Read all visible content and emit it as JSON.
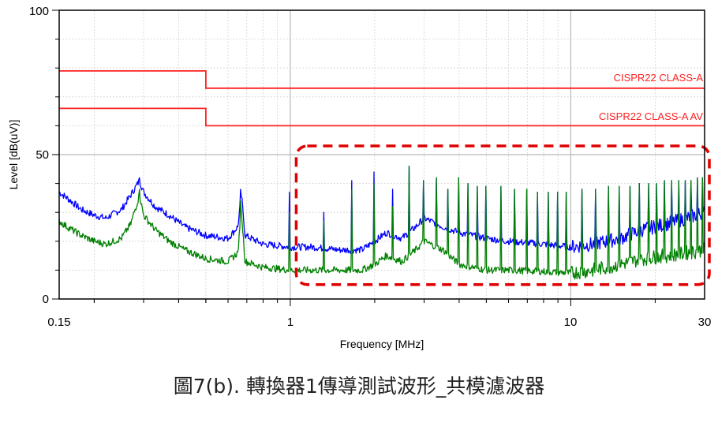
{
  "caption": "圖7(b). 轉換器1傳導測試波形_共模濾波器",
  "chart_data": {
    "type": "line",
    "xscale": "log",
    "xlabel": "Frequency [MHz]",
    "ylabel": "Level [dB(uV)]",
    "xlim": [
      0.15,
      30
    ],
    "ylim": [
      0,
      100
    ],
    "x_ticks": [
      "0.15",
      "1",
      "10",
      "30"
    ],
    "y_ticks": [
      "0",
      "50",
      "100"
    ],
    "grid": true,
    "limit_lines": [
      {
        "name": "CISPR22 CLASS-A",
        "color": "#ff2020",
        "points": [
          [
            0.15,
            79
          ],
          [
            0.5,
            79
          ],
          [
            0.5,
            73
          ],
          [
            30,
            73
          ]
        ]
      },
      {
        "name": "CISPR22 CLASS-A AV",
        "color": "#ff2020",
        "points": [
          [
            0.15,
            66
          ],
          [
            0.5,
            66
          ],
          [
            0.5,
            60
          ],
          [
            30,
            60
          ]
        ]
      }
    ],
    "series": [
      {
        "color": "#0000ff",
        "points": [
          [
            0.15,
            37
          ],
          [
            0.16,
            35
          ],
          [
            0.18,
            31
          ],
          [
            0.2,
            29
          ],
          [
            0.22,
            28
          ],
          [
            0.25,
            31
          ],
          [
            0.27,
            36
          ],
          [
            0.29,
            41
          ],
          [
            0.3,
            37
          ],
          [
            0.33,
            32
          ],
          [
            0.37,
            29
          ],
          [
            0.42,
            25
          ],
          [
            0.5,
            22
          ],
          [
            0.6,
            21
          ],
          [
            0.65,
            25
          ],
          [
            0.67,
            36
          ],
          [
            0.69,
            22
          ],
          [
            0.8,
            19
          ],
          [
            1.0,
            18
          ],
          [
            1.2,
            18
          ],
          [
            1.5,
            17
          ],
          [
            1.8,
            17
          ],
          [
            2.0,
            20
          ],
          [
            2.2,
            23
          ],
          [
            2.5,
            21
          ],
          [
            2.8,
            25
          ],
          [
            3.0,
            28
          ],
          [
            3.5,
            25
          ],
          [
            4,
            23
          ],
          [
            5,
            21
          ],
          [
            6,
            20
          ],
          [
            8,
            19
          ],
          [
            10,
            18
          ],
          [
            12,
            19
          ],
          [
            15,
            21
          ],
          [
            18,
            24
          ],
          [
            22,
            26
          ],
          [
            26,
            28
          ],
          [
            30,
            30
          ]
        ]
      },
      {
        "color": "#008000",
        "points": [
          [
            0.15,
            27
          ],
          [
            0.16,
            25
          ],
          [
            0.18,
            22
          ],
          [
            0.2,
            20
          ],
          [
            0.22,
            19
          ],
          [
            0.25,
            21
          ],
          [
            0.27,
            26
          ],
          [
            0.29,
            36
          ],
          [
            0.3,
            29
          ],
          [
            0.33,
            24
          ],
          [
            0.37,
            20
          ],
          [
            0.42,
            17
          ],
          [
            0.5,
            14
          ],
          [
            0.6,
            13
          ],
          [
            0.65,
            16
          ],
          [
            0.67,
            30
          ],
          [
            0.69,
            13
          ],
          [
            0.8,
            11
          ],
          [
            1.0,
            10
          ],
          [
            1.2,
            10
          ],
          [
            1.5,
            10
          ],
          [
            1.8,
            10
          ],
          [
            2.0,
            12
          ],
          [
            2.2,
            15
          ],
          [
            2.5,
            13
          ],
          [
            2.8,
            17
          ],
          [
            3.0,
            20
          ],
          [
            3.5,
            17
          ],
          [
            4,
            12
          ],
          [
            5,
            10
          ],
          [
            6,
            10
          ],
          [
            8,
            9.5
          ],
          [
            10,
            9
          ],
          [
            12,
            10
          ],
          [
            15,
            12
          ],
          [
            18,
            14
          ],
          [
            22,
            15
          ],
          [
            26,
            16
          ],
          [
            30,
            17
          ]
        ]
      }
    ],
    "peaks": [
      {
        "x": 0.29,
        "blue": 42,
        "green": 38
      },
      {
        "x": 0.665,
        "blue": 38,
        "green": 34
      },
      {
        "x": 0.99,
        "blue": 37,
        "green": 30
      },
      {
        "x": 1.32,
        "blue": 30,
        "green": 27
      },
      {
        "x": 1.66,
        "blue": 41,
        "green": 38
      },
      {
        "x": 1.99,
        "blue": 44,
        "green": 40
      },
      {
        "x": 2.32,
        "blue": 38,
        "green": 32
      },
      {
        "x": 2.65,
        "blue": 46,
        "green": 46
      },
      {
        "x": 2.99,
        "blue": 41,
        "green": 41
      },
      {
        "x": 3.32,
        "blue": 42,
        "green": 42
      },
      {
        "x": 3.65,
        "blue": 38,
        "green": 38
      },
      {
        "x": 3.98,
        "blue": 42,
        "green": 42
      },
      {
        "x": 4.31,
        "blue": 40,
        "green": 40
      },
      {
        "x": 4.64,
        "blue": 39,
        "green": 39
      },
      {
        "x": 4.97,
        "blue": 39,
        "green": 39
      },
      {
        "x": 5.63,
        "blue": 39,
        "green": 39
      },
      {
        "x": 6.3,
        "blue": 38,
        "green": 38
      },
      {
        "x": 6.96,
        "blue": 38,
        "green": 38
      },
      {
        "x": 7.62,
        "blue": 37,
        "green": 37
      },
      {
        "x": 8.29,
        "blue": 37,
        "green": 37
      },
      {
        "x": 8.95,
        "blue": 37,
        "green": 37
      },
      {
        "x": 9.61,
        "blue": 37,
        "green": 37
      },
      {
        "x": 10.94,
        "blue": 38,
        "green": 38
      },
      {
        "x": 12.27,
        "blue": 38,
        "green": 38
      },
      {
        "x": 13.6,
        "blue": 39,
        "green": 39
      },
      {
        "x": 14.93,
        "blue": 39,
        "green": 39
      },
      {
        "x": 16.26,
        "blue": 39,
        "green": 39
      },
      {
        "x": 17.58,
        "blue": 40,
        "green": 40
      },
      {
        "x": 18.91,
        "blue": 40,
        "green": 40
      },
      {
        "x": 20.24,
        "blue": 40,
        "green": 40
      },
      {
        "x": 21.57,
        "blue": 41,
        "green": 41
      },
      {
        "x": 22.9,
        "blue": 41,
        "green": 41
      },
      {
        "x": 24.23,
        "blue": 41,
        "green": 41
      },
      {
        "x": 25.56,
        "blue": 41,
        "green": 41
      },
      {
        "x": 26.89,
        "blue": 41,
        "green": 41
      },
      {
        "x": 28.22,
        "blue": 42,
        "green": 42
      },
      {
        "x": 29.55,
        "blue": 42,
        "green": 42
      }
    ],
    "highlight_region": {
      "x": [
        1.05,
        30
      ],
      "y": [
        5,
        53
      ],
      "color": "#e00000"
    }
  }
}
